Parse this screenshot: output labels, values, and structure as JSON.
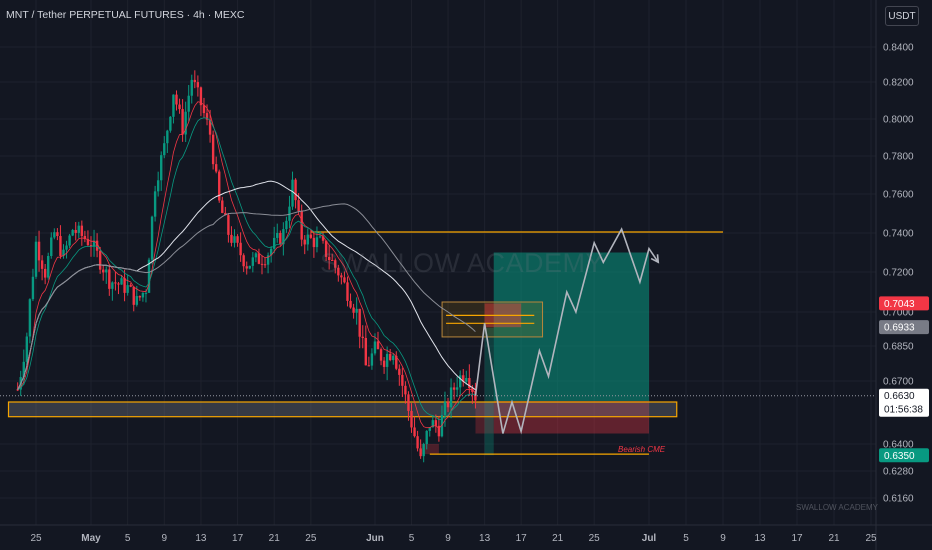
{
  "header": {
    "symbol_title": "MNT / Tether PERPETUAL FUTURES · 4h · MEXC",
    "currency_label": "USDT"
  },
  "watermark": {
    "main": "SWALLOW ACADEMY",
    "corner": "SWALLOW ACADEMY"
  },
  "annotation": {
    "bearish_cme": "Bearish CME"
  },
  "colors": {
    "background": "#131722",
    "bull": "#089981",
    "bear": "#f23645",
    "level": "#f7a600",
    "ema_fast": "#f23645",
    "ema_slow": "#089981"
  },
  "chart_data": {
    "type": "candlestick",
    "y_ticks": [
      0.84,
      0.82,
      0.8,
      0.78,
      0.76,
      0.74,
      0.72,
      0.7,
      0.685,
      0.67,
      0.64,
      0.628,
      0.616
    ],
    "y_tick_labels": [
      "0.8400",
      "0.8200",
      "0.8000",
      "0.7800",
      "0.7600",
      "0.7400",
      "0.7200",
      "0.7000",
      "0.6850",
      "0.6700",
      "0.6400",
      "0.6280",
      "0.6160"
    ],
    "x_ticks": [
      "25",
      "May",
      "5",
      "9",
      "13",
      "17",
      "21",
      "25",
      "Jun",
      "5",
      "9",
      "13",
      "17",
      "21",
      "25",
      "Jul",
      "5",
      "9",
      "13",
      "17",
      "21",
      "25"
    ],
    "price_labels": [
      {
        "value": 0.7043,
        "text": "0.7043",
        "color": "#f23645"
      },
      {
        "value": 0.6933,
        "text": "0.6933",
        "color": "#787b86"
      },
      {
        "value": 0.663,
        "text": "0.6630",
        "countdown": "01:56:38",
        "color": "#ffffff"
      },
      {
        "value": 0.635,
        "text": "0.6350",
        "color": "#089981"
      }
    ],
    "close_path": [
      [
        "Apr 23",
        0.666
      ],
      [
        "Apr 24",
        0.69
      ],
      [
        "Apr 25",
        0.735
      ],
      [
        "Apr 26",
        0.72
      ],
      [
        "Apr 27",
        0.74
      ],
      [
        "Apr 28",
        0.728
      ],
      [
        "Apr 29",
        0.742
      ],
      [
        "May 1",
        0.735
      ],
      [
        "May 3",
        0.716
      ],
      [
        "May 5",
        0.712
      ],
      [
        "May 6",
        0.705
      ],
      [
        "May 7",
        0.712
      ],
      [
        "May 8",
        0.765
      ],
      [
        "May 9",
        0.785
      ],
      [
        "May 10",
        0.815
      ],
      [
        "May 11",
        0.795
      ],
      [
        "May 12",
        0.822
      ],
      [
        "May 13",
        0.808
      ],
      [
        "May 14",
        0.792
      ],
      [
        "May 15",
        0.755
      ],
      [
        "May 16",
        0.74
      ],
      [
        "May 18",
        0.724
      ],
      [
        "May 20",
        0.728
      ],
      [
        "May 22",
        0.74
      ],
      [
        "May 23",
        0.765
      ],
      [
        "May 24",
        0.738
      ],
      [
        "May 26",
        0.735
      ],
      [
        "May 28",
        0.72
      ],
      [
        "May 30",
        0.7
      ],
      [
        "May 31",
        0.676
      ],
      [
        "Jun 1",
        0.683
      ],
      [
        "Jun 2",
        0.68
      ],
      [
        "Jun 3",
        0.684
      ],
      [
        "Jun 4",
        0.668
      ],
      [
        "Jun 5",
        0.65
      ],
      [
        "Jun 6",
        0.632
      ],
      [
        "Jun 7",
        0.65
      ],
      [
        "Jun 8",
        0.648
      ],
      [
        "Jun 9",
        0.66
      ],
      [
        "Jun 10",
        0.67
      ],
      [
        "Jun 11",
        0.675
      ],
      [
        "Jun 12",
        0.663
      ]
    ],
    "levels": [
      {
        "name": "resistance",
        "value": 0.7405,
        "from": "May 25",
        "to": "Jul 9"
      },
      {
        "name": "support-zone",
        "value_top": 0.66,
        "value_bottom": 0.653,
        "from": "Apr 22",
        "to": "Jul 4"
      },
      {
        "name": "bearish-cme-line",
        "value": 0.6355,
        "from": "Jun 7",
        "to": "Jul 1"
      }
    ],
    "projection": [
      [
        "Jun 12",
        0.663
      ],
      [
        "Jun 13",
        0.695
      ],
      [
        "Jun 15",
        0.645
      ],
      [
        "Jun 16",
        0.66
      ],
      [
        "Jun 17",
        0.646
      ],
      [
        "Jun 19",
        0.683
      ],
      [
        "Jun 20",
        0.672
      ],
      [
        "Jun 22",
        0.71
      ],
      [
        "Jun 23",
        0.7
      ],
      [
        "Jun 25",
        0.735
      ],
      [
        "Jun 26",
        0.725
      ],
      [
        "Jun 28",
        0.742
      ],
      [
        "Jun 30",
        0.715
      ],
      [
        "Jul 1",
        0.732
      ],
      [
        "Jul 2",
        0.725
      ]
    ],
    "long_position": {
      "entry": 0.6605,
      "target": 0.73,
      "stop": 0.645,
      "from": "Jun 14",
      "to": "Jul 1"
    }
  }
}
